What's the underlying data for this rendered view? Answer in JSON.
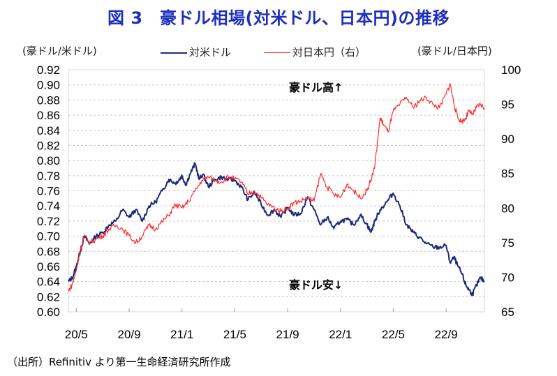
{
  "title": "図 3　豪ドル相場(対米ドル、日本円)の推移",
  "unit_left": "(豪ドル/米ドル)",
  "unit_right": "(豪ドル/日本円)",
  "source": "（出所）Refinitiv より第一生命経済研究所作成",
  "colors": {
    "usd": "#1c2a78",
    "jpy": "#ff2a2a",
    "grid": "#c8c8c8",
    "title": "#1f2fbd"
  },
  "chart_data": {
    "type": "line",
    "x_tick_labels": [
      "20/5",
      "20/9",
      "21/1",
      "21/5",
      "21/9",
      "22/1",
      "22/5",
      "22/9"
    ],
    "x_tick_positions": [
      0,
      4,
      8,
      12,
      16,
      20,
      24,
      28
    ],
    "xlim": [
      -0.6,
      30.9
    ],
    "y_left": {
      "ylim": [
        0.6,
        0.92
      ],
      "ticks": [
        0.6,
        0.62,
        0.64,
        0.66,
        0.68,
        0.7,
        0.72,
        0.74,
        0.76,
        0.78,
        0.8,
        0.82,
        0.84,
        0.86,
        0.88,
        0.9,
        0.92
      ]
    },
    "y_right": {
      "ylim": [
        65,
        100
      ],
      "ticks": [
        65,
        70,
        75,
        80,
        85,
        90,
        95,
        100
      ]
    },
    "grid": "horizontal dashed",
    "legend_position": "top-center",
    "series": [
      {
        "name": "対米ドル",
        "axis": "left",
        "color": "#1c2a78",
        "x": [
          -0.6,
          -0.3,
          0,
          0.3,
          0.6,
          1,
          1.5,
          2,
          2.5,
          3,
          3.5,
          4,
          4.5,
          5,
          5.5,
          6,
          6.5,
          7,
          7.5,
          7.8,
          8,
          8.3,
          8.6,
          9,
          9.3,
          9.6,
          10,
          10.5,
          11,
          11.5,
          12,
          12.5,
          13,
          13.5,
          14,
          14.5,
          15,
          15.5,
          16,
          16.5,
          17,
          17.5,
          18,
          18.5,
          19,
          19.5,
          20,
          20.5,
          21,
          21.5,
          22,
          22.3,
          22.6,
          23,
          23.5,
          24,
          24.5,
          25,
          25.5,
          26,
          26.5,
          27,
          27.5,
          28,
          28.3,
          28.6,
          28.9,
          29.2,
          29.5,
          29.7,
          30,
          30.3,
          30.6,
          30.9
        ],
        "values": [
          0.64,
          0.645,
          0.66,
          0.68,
          0.7,
          0.69,
          0.7,
          0.705,
          0.715,
          0.72,
          0.735,
          0.725,
          0.735,
          0.72,
          0.74,
          0.745,
          0.76,
          0.775,
          0.77,
          0.775,
          0.78,
          0.768,
          0.782,
          0.796,
          0.775,
          0.782,
          0.765,
          0.775,
          0.778,
          0.775,
          0.774,
          0.765,
          0.748,
          0.758,
          0.742,
          0.728,
          0.735,
          0.725,
          0.738,
          0.728,
          0.73,
          0.752,
          0.735,
          0.715,
          0.725,
          0.71,
          0.72,
          0.722,
          0.715,
          0.728,
          0.716,
          0.705,
          0.72,
          0.735,
          0.745,
          0.757,
          0.74,
          0.715,
          0.705,
          0.698,
          0.69,
          0.686,
          0.685,
          0.688,
          0.665,
          0.672,
          0.66,
          0.65,
          0.635,
          0.63,
          0.623,
          0.635,
          0.645,
          0.64
        ],
        "label": "豪ドル安↓"
      },
      {
        "name": "対日本円（右）",
        "axis": "right",
        "color": "#ff2a2a",
        "x": [
          -0.6,
          -0.3,
          0,
          0.3,
          0.6,
          1,
          1.5,
          2,
          2.5,
          3,
          3.5,
          4,
          4.5,
          5,
          5.5,
          6,
          6.5,
          7,
          7.5,
          8,
          8.5,
          9,
          9.5,
          10,
          10.5,
          11,
          11.5,
          12,
          12.5,
          13,
          13.5,
          14,
          14.5,
          15,
          15.5,
          16,
          16.5,
          17,
          17.5,
          18,
          18.5,
          19,
          19.5,
          20,
          20.5,
          21,
          21.5,
          22,
          22.3,
          22.6,
          23,
          23.3,
          23.6,
          24,
          24.5,
          25,
          25.5,
          26,
          26.5,
          27,
          27.5,
          28,
          28.3,
          28.6,
          28.9,
          29.2,
          29.5,
          29.7,
          30,
          30.3,
          30.6,
          30.9
        ],
        "values": [
          68,
          69,
          71,
          74,
          76,
          75,
          75.5,
          76,
          77,
          77.5,
          77,
          76,
          75,
          76,
          77.5,
          77,
          78,
          79,
          80.5,
          80,
          81,
          82.5,
          84,
          84.5,
          84,
          83.8,
          84.5,
          84.2,
          83.8,
          82,
          82.5,
          81.5,
          80.5,
          80,
          79.5,
          80,
          80.8,
          81,
          81.5,
          81,
          85,
          83,
          82,
          81.5,
          83.5,
          82.5,
          81.5,
          82.5,
          84,
          86,
          93,
          92,
          91,
          94,
          95,
          96,
          94.5,
          95.5,
          96,
          95,
          94.5,
          96.5,
          98,
          95,
          93,
          92.5,
          93,
          94,
          93.5,
          94.5,
          95,
          94.5
        ],
        "label": "豪ドル高↑"
      }
    ]
  }
}
